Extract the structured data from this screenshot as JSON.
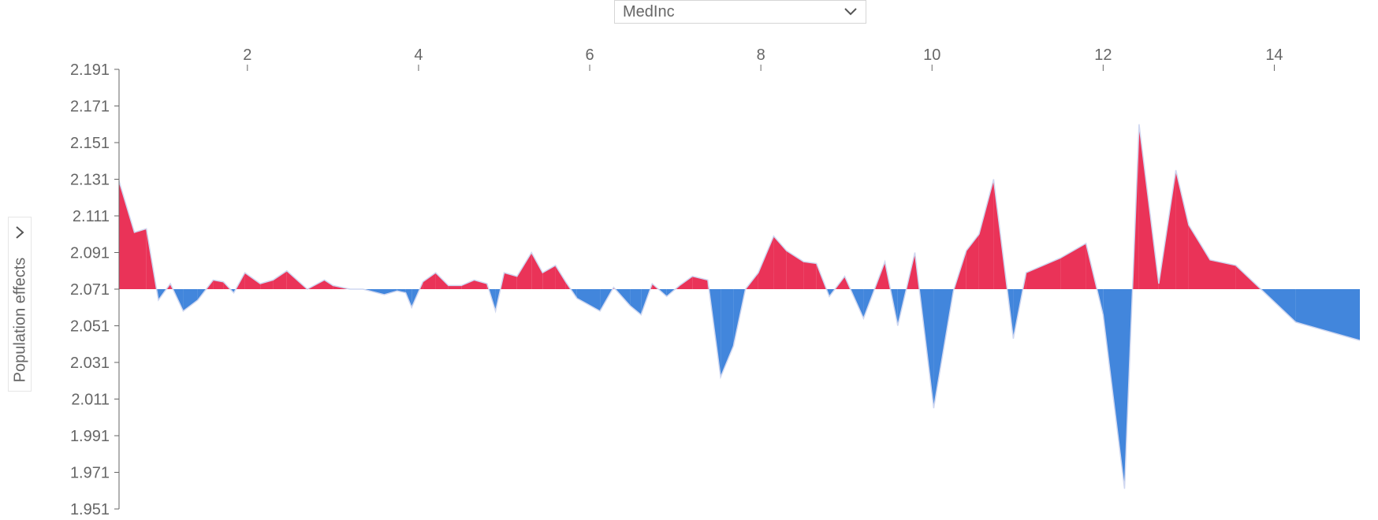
{
  "feature_dropdown": {
    "selected": "MedInc"
  },
  "y_axis_toggle": {
    "label": "Population effects"
  },
  "colors": {
    "above": "#ea3358",
    "below": "#4286dc",
    "line": "#cfd7f0",
    "axis": "#666666"
  },
  "chart_data": {
    "type": "area",
    "title": "",
    "xlabel": "MedInc",
    "ylabel": "Population effects",
    "xlim": [
      0.5,
      15
    ],
    "ylim": [
      1.951,
      2.191
    ],
    "baseline": 2.071,
    "x_ticks": [
      2,
      4,
      6,
      8,
      10,
      12,
      14
    ],
    "y_ticks": [
      "2.191",
      "2.171",
      "2.151",
      "2.131",
      "2.111",
      "2.091",
      "2.071",
      "2.051",
      "2.031",
      "2.011",
      "1.991",
      "1.971",
      "1.951"
    ],
    "series": [
      {
        "x": [
          0.5,
          0.68,
          0.82,
          0.96,
          1.1,
          1.25,
          1.42,
          1.6,
          1.72,
          1.84,
          1.97,
          2.15,
          2.3,
          2.46,
          2.7,
          2.9,
          3.0,
          3.2,
          3.35,
          3.6,
          3.75,
          3.85,
          3.92,
          4.05,
          4.2,
          4.35,
          4.5,
          4.65,
          4.8,
          4.9,
          5.0,
          5.15,
          5.32,
          5.45,
          5.6,
          5.72,
          5.85,
          6.12,
          6.28,
          6.47,
          6.6,
          6.73,
          6.9,
          7.05,
          7.2,
          7.38,
          7.53,
          7.68,
          7.82,
          7.97,
          8.15,
          8.3,
          8.5,
          8.65,
          8.8,
          8.98,
          9.2,
          9.45,
          9.6,
          9.8,
          10.02,
          10.25,
          10.4,
          10.55,
          10.72,
          10.95,
          11.1,
          11.5,
          11.8,
          12.0,
          12.25,
          12.42,
          12.65,
          12.85,
          13.0,
          13.25,
          13.55,
          14.25,
          15.0
        ],
        "y": [
          2.13,
          2.102,
          2.104,
          2.065,
          2.074,
          2.059,
          2.065,
          2.076,
          2.075,
          2.069,
          2.08,
          2.074,
          2.076,
          2.081,
          2.071,
          2.076,
          2.073,
          2.071,
          2.071,
          2.068,
          2.07,
          2.069,
          2.061,
          2.075,
          2.08,
          2.073,
          2.073,
          2.076,
          2.074,
          2.059,
          2.08,
          2.078,
          2.091,
          2.08,
          2.084,
          2.075,
          2.066,
          2.059,
          2.072,
          2.062,
          2.057,
          2.074,
          2.067,
          2.073,
          2.078,
          2.076,
          2.023,
          2.04,
          2.071,
          2.08,
          2.1,
          2.092,
          2.086,
          2.085,
          2.067,
          2.078,
          2.055,
          2.086,
          2.051,
          2.091,
          2.006,
          2.07,
          2.092,
          2.101,
          2.131,
          2.044,
          2.08,
          2.088,
          2.096,
          2.057,
          1.962,
          2.161,
          2.074,
          2.136,
          2.106,
          2.087,
          2.084,
          2.053,
          2.043
        ]
      }
    ]
  }
}
